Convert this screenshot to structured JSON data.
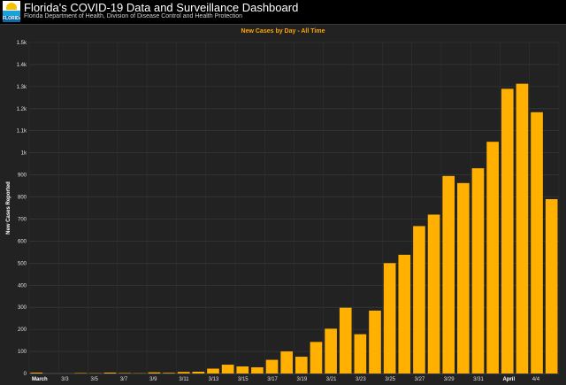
{
  "header": {
    "title": "Florida's COVID-19 Data and Surveillance Dashboard",
    "subtitle": "Florida Department of Health, Division of Disease Control and Health Protection",
    "logo_text": "FLORIDA"
  },
  "colors": {
    "bar": "#ffb000",
    "background": "#222222",
    "title_accent": "#ffa500"
  },
  "chart_data": {
    "type": "bar",
    "title": "New Cases by Day - All Time",
    "ylabel": "New Cases Reported",
    "xlabel": "",
    "ylim": [
      0,
      1500
    ],
    "yticks": [
      0,
      100,
      200,
      300,
      400,
      500,
      600,
      700,
      800,
      900,
      "1k",
      "1.1k",
      "1.2k",
      "1.3k",
      "1.4k",
      "1.5k"
    ],
    "x_tick_labels": [
      {
        "index": 0,
        "label": "March",
        "bold": true
      },
      {
        "index": 2,
        "label": "3/3"
      },
      {
        "index": 4,
        "label": "3/5"
      },
      {
        "index": 6,
        "label": "3/7"
      },
      {
        "index": 8,
        "label": "3/9"
      },
      {
        "index": 10,
        "label": "3/11"
      },
      {
        "index": 12,
        "label": "3/13"
      },
      {
        "index": 14,
        "label": "3/15"
      },
      {
        "index": 16,
        "label": "3/17"
      },
      {
        "index": 18,
        "label": "3/19"
      },
      {
        "index": 20,
        "label": "3/21"
      },
      {
        "index": 22,
        "label": "3/23"
      },
      {
        "index": 24,
        "label": "3/25"
      },
      {
        "index": 26,
        "label": "3/27"
      },
      {
        "index": 28,
        "label": "3/29"
      },
      {
        "index": 30,
        "label": "3/31"
      },
      {
        "index": 32,
        "label": "April",
        "bold": true
      },
      {
        "index": 34,
        "label": "4/4"
      }
    ],
    "categories": [
      "3/1",
      "3/2",
      "3/3",
      "3/4",
      "3/5",
      "3/6",
      "3/7",
      "3/8",
      "3/9",
      "3/10",
      "3/11",
      "3/12",
      "3/13",
      "3/14",
      "3/15",
      "3/16",
      "3/17",
      "3/18",
      "3/19",
      "3/20",
      "3/21",
      "3/22",
      "3/23",
      "3/24",
      "3/25",
      "3/26",
      "3/27",
      "3/28",
      "3/29",
      "3/30",
      "3/31",
      "4/1",
      "4/2",
      "4/3",
      "4/4",
      "4/5"
    ],
    "values": [
      4,
      0,
      0,
      2,
      1,
      4,
      2,
      1,
      5,
      3,
      7,
      8,
      22,
      40,
      32,
      28,
      62,
      100,
      76,
      143,
      203,
      298,
      178,
      285,
      500,
      538,
      668,
      720,
      895,
      863,
      930,
      1050,
      1290,
      1313,
      1184,
      790
    ],
    "grid": true,
    "legend": "none"
  }
}
